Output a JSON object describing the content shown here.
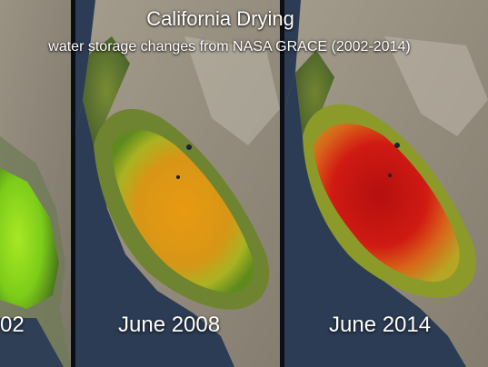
{
  "title": "California Drying",
  "subtitle": "water storage changes from NASA GRACE (2002-2014)",
  "panels": [
    {
      "date_label": "02",
      "depletion_level": 0.15
    },
    {
      "date_label": "June 2008",
      "depletion_level": 0.5
    },
    {
      "date_label": "June 2014",
      "depletion_level": 0.95
    }
  ],
  "colors": {
    "ocean": "#2a3a52",
    "land": "#8c8474",
    "vegetation": "#5b6b3a",
    "low_depletion": "#8fe020",
    "mid_depletion": "#e0a010",
    "high_depletion": "#c81010"
  }
}
